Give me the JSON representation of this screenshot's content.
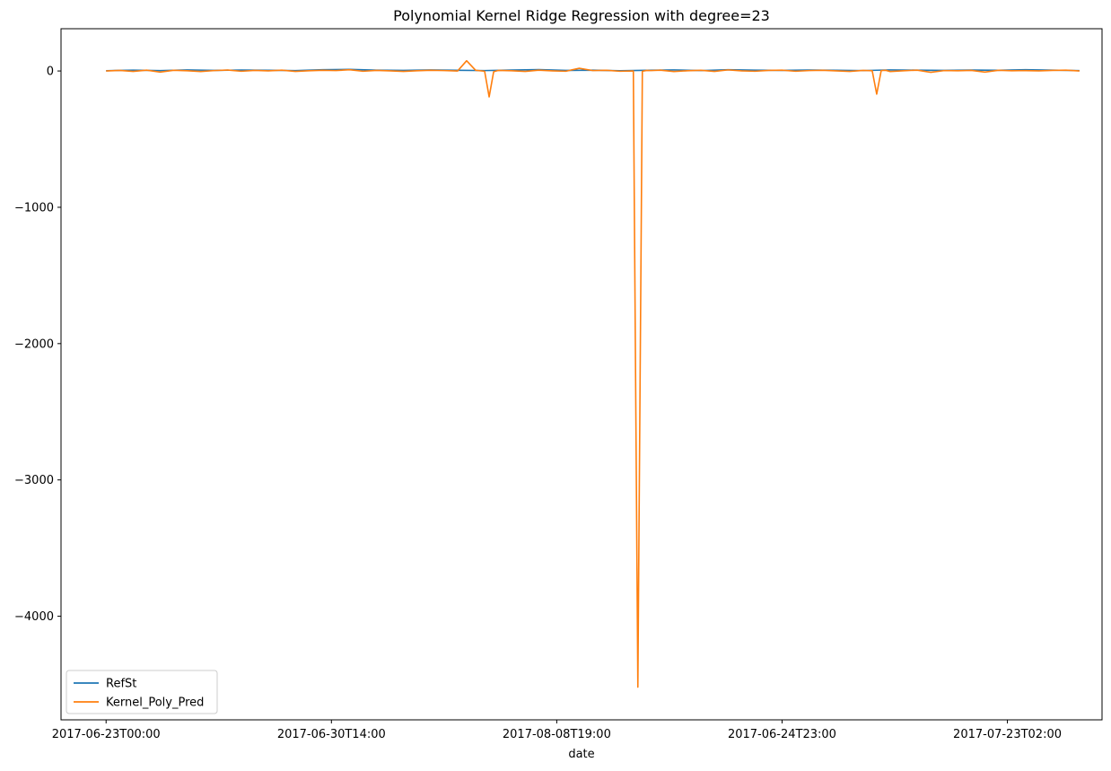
{
  "chart_data": {
    "type": "line",
    "title": "Polynomial Kernel Ridge Regression with degree=23",
    "xlabel": "date",
    "ylabel": "",
    "xtick_labels": [
      "2017-06-23T00:00",
      "2017-06-30T14:00",
      "2017-08-08T19:00",
      "2017-06-24T23:00",
      "2017-07-23T02:00"
    ],
    "xtick_positions": [
      0,
      50,
      100,
      150,
      200
    ],
    "xlim": [
      -10,
      221
    ],
    "ylim": [
      -4760,
      310
    ],
    "yticks": [
      0,
      -1000,
      -2000,
      -3000,
      -4000
    ],
    "ytick_labels": [
      "0",
      "−1000",
      "−2000",
      "−3000",
      "−4000"
    ],
    "grid": false,
    "legend": {
      "location": "lower-left",
      "entries": [
        "RefSt",
        "Kernel_Poly_Pred"
      ]
    },
    "series": [
      {
        "name": "RefSt",
        "color": "#1f77b4",
        "x": [
          0,
          6,
          12,
          18,
          24,
          30,
          36,
          42,
          48,
          54,
          60,
          66,
          72,
          78,
          84,
          90,
          96,
          102,
          108,
          114,
          120,
          126,
          132,
          138,
          144,
          150,
          156,
          162,
          168,
          174,
          180,
          186,
          192,
          198,
          204,
          210,
          216
        ],
        "values": [
          2,
          6,
          3,
          8,
          4,
          7,
          5,
          3,
          9,
          12,
          6,
          4,
          8,
          5,
          3,
          7,
          10,
          4,
          6,
          2,
          5,
          8,
          3,
          9,
          6,
          4,
          7,
          5,
          3,
          8,
          6,
          4,
          7,
          5,
          9,
          6,
          3
        ]
      },
      {
        "name": "Kernel_Poly_Pred",
        "color": "#ff7f0e",
        "x": [
          0,
          3,
          6,
          9,
          12,
          15,
          18,
          21,
          24,
          27,
          30,
          33,
          36,
          39,
          42,
          45,
          48,
          51,
          54,
          57,
          60,
          63,
          66,
          69,
          72,
          75,
          78,
          80,
          82,
          84,
          85,
          86,
          87,
          90,
          93,
          96,
          99,
          102,
          105,
          108,
          111,
          114,
          117,
          118,
          119,
          120,
          121,
          123,
          126,
          129,
          132,
          135,
          138,
          141,
          144,
          147,
          150,
          153,
          156,
          159,
          162,
          165,
          168,
          170,
          171,
          172,
          173,
          174,
          177,
          180,
          183,
          186,
          189,
          192,
          195,
          198,
          201,
          204,
          207,
          210,
          213,
          216
        ],
        "values": [
          0,
          4,
          -3,
          6,
          -8,
          5,
          2,
          -4,
          3,
          7,
          -2,
          4,
          1,
          6,
          -3,
          2,
          5,
          3,
          9,
          -2,
          4,
          1,
          -3,
          2,
          5,
          3,
          0,
          75,
          5,
          -2,
          -190,
          -5,
          4,
          2,
          -3,
          6,
          1,
          -2,
          20,
          3,
          5,
          -2,
          0,
          -4520,
          -2,
          4,
          3,
          6,
          -4,
          2,
          5,
          -3,
          8,
          1,
          -2,
          4,
          6,
          -2,
          3,
          5,
          1,
          -3,
          4,
          2,
          -170,
          3,
          5,
          -4,
          2,
          6,
          -10,
          3,
          2,
          4,
          -8,
          5,
          2,
          3,
          1,
          4,
          6,
          0
        ]
      }
    ]
  }
}
